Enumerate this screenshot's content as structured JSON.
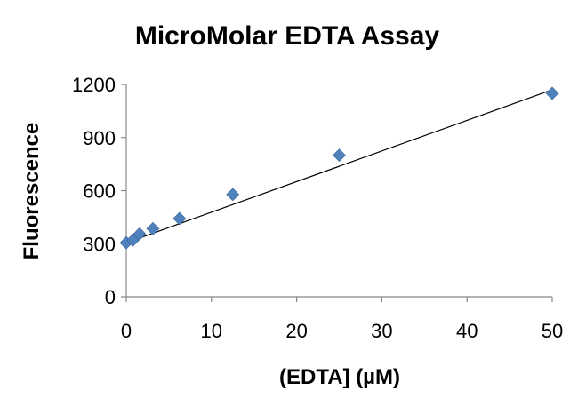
{
  "chart_data": {
    "type": "scatter",
    "title": "MicroMolar EDTA Assay",
    "xlabel": "(EDTA] (µM)",
    "ylabel": "Fluorescence",
    "xlim": [
      0,
      50
    ],
    "ylim": [
      0,
      1200
    ],
    "xticks": [
      0,
      10,
      20,
      30,
      40,
      50
    ],
    "yticks": [
      0,
      300,
      600,
      900,
      1200
    ],
    "grid": false,
    "legend": "none",
    "series": [
      {
        "marker": "diamond",
        "color": "#4F81BD",
        "points": [
          {
            "x": 0,
            "y": 305
          },
          {
            "x": 0.78,
            "y": 320
          },
          {
            "x": 1.56,
            "y": 355
          },
          {
            "x": 3.13,
            "y": 385
          },
          {
            "x": 6.25,
            "y": 442
          },
          {
            "x": 12.5,
            "y": 578
          },
          {
            "x": 25,
            "y": 800
          },
          {
            "x": 50,
            "y": 1150
          }
        ]
      }
    ],
    "trendline": {
      "type": "linear",
      "color": "#000000",
      "x": [
        0,
        50
      ],
      "y": [
        305,
        1170
      ]
    }
  }
}
